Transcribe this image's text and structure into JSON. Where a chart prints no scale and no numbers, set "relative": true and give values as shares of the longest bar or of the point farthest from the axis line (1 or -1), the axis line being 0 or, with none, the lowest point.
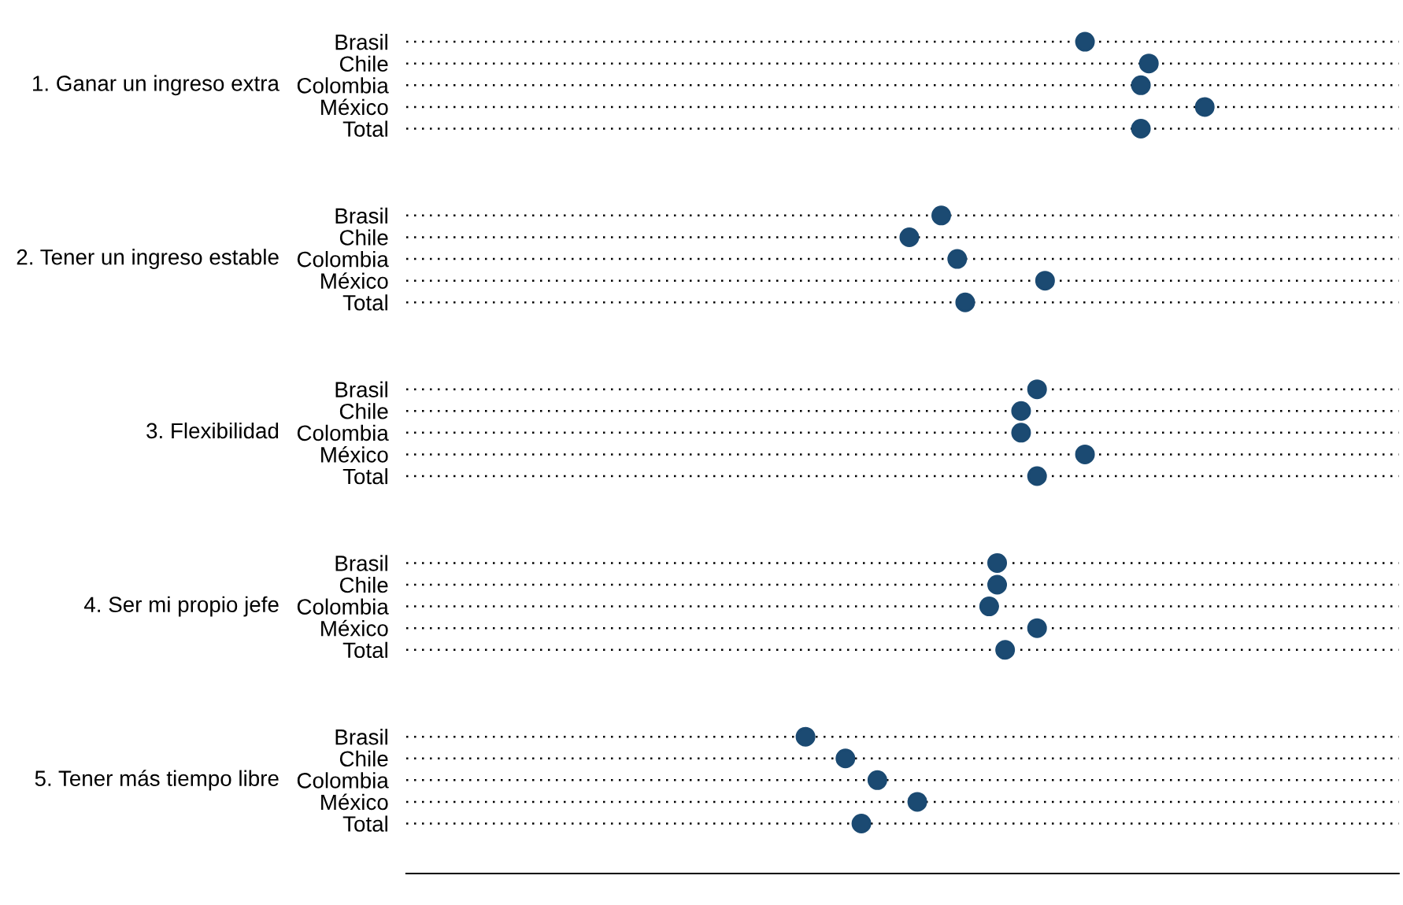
{
  "chart_data": {
    "type": "scatter",
    "orientation": "horizontal",
    "relative": true,
    "grid": "y",
    "marker": "circle",
    "categories": [
      "Brasil",
      "Chile",
      "Colombia",
      "México",
      "Total",
      null,
      null,
      null,
      "Brasil",
      "Chile",
      "Colombia",
      "México",
      "Total",
      null,
      null,
      null,
      "Brasil",
      "Chile",
      "Colombia",
      "México",
      "Total",
      null,
      null,
      null,
      "Brasil",
      "Chile",
      "Colombia",
      "México",
      "Total",
      null,
      null,
      null,
      "Brasil",
      "Chile",
      "Colombia",
      "México",
      "Total"
    ],
    "series": [
      {
        "color": "#1b4a72",
        "values": [
          0.85,
          0.93,
          0.92,
          1,
          0.92,
          null,
          null,
          null,
          0.67,
          0.63,
          0.69,
          0.8,
          0.7,
          null,
          null,
          null,
          0.79,
          0.77,
          0.77,
          0.85,
          0.79,
          null,
          null,
          null,
          0.74,
          0.74,
          0.73,
          0.79,
          0.75,
          null,
          null,
          null,
          0.5,
          0.55,
          0.59,
          0.64,
          0.57
        ]
      }
    ],
    "annotations": [
      "1. Ganar un ingreso extra",
      "2. Tener un ingreso estable",
      "3. Flexibilidad",
      "4. Ser mi propio jefe",
      "5. Tener más tiempo libre"
    ]
  }
}
